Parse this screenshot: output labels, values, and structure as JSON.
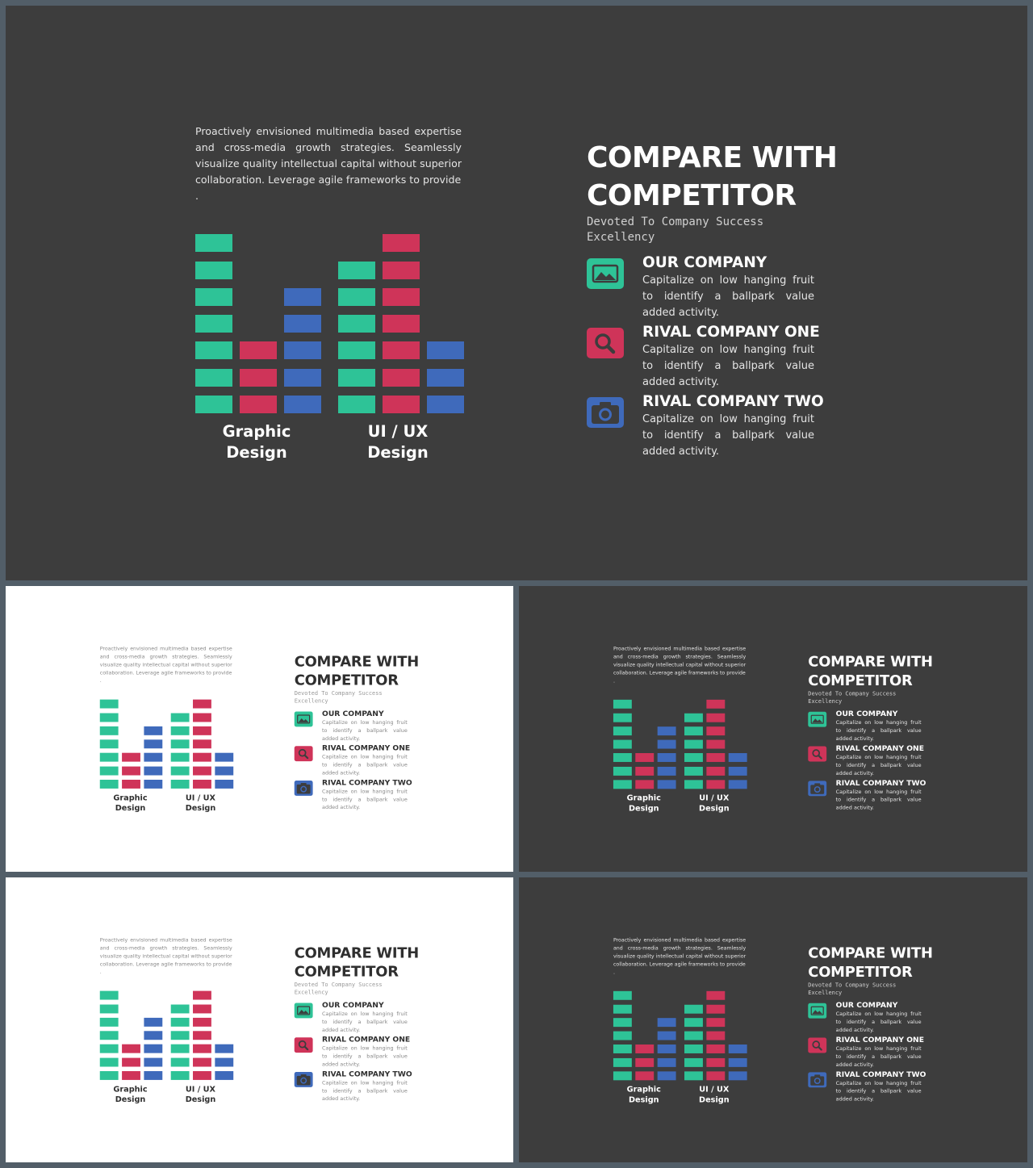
{
  "colors": {
    "green": "#2ec397",
    "red": "#cf3459",
    "blue": "#3f6abb",
    "dark_bg": "#3d3d3d",
    "light_bg": "#ffffff"
  },
  "slide": {
    "intro_text": "Proactively envisioned multimedia based expertise and cross-media growth strategies. Seamlessly visualize quality intellectual capital without superior collaboration. Leverage agile frameworks to provide\n.",
    "title": "COMPARE WITH\nCOMPETITOR",
    "subtitle": "Devoted To Company Success Excellency",
    "groups": [
      {
        "label": "Graphic\nDesign",
        "blocks": {
          "green": 7,
          "red": 3,
          "blue": 5
        }
      },
      {
        "label": "UI / UX\nDesign",
        "blocks": {
          "green": 6,
          "red": 7,
          "blue": 3
        }
      }
    ],
    "companies": [
      {
        "name": "OUR COMPANY",
        "icon": "image-icon",
        "color": "green",
        "desc": "Capitalize on low hanging fruit to identify a ballpark value added activity."
      },
      {
        "name": "RIVAL COMPANY ONE",
        "icon": "search-icon",
        "color": "red",
        "desc": "Capitalize on low hanging fruit to identify a ballpark value added activity."
      },
      {
        "name": "RIVAL COMPANY TWO",
        "icon": "camera-icon",
        "color": "blue",
        "desc": "Capitalize on low hanging fruit to identify a ballpark value added activity."
      }
    ]
  },
  "thumbnails": [
    {
      "theme": "dark"
    },
    {
      "theme": "light"
    },
    {
      "theme": "dark"
    },
    {
      "theme": "light"
    },
    {
      "theme": "dark"
    }
  ]
}
